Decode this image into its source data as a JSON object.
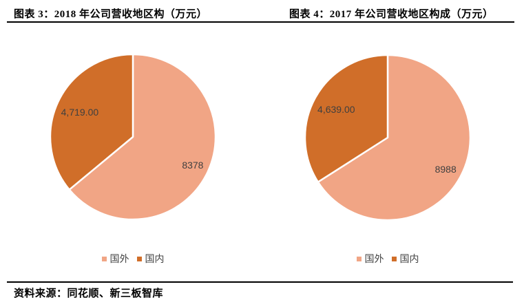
{
  "source": "资料来源：同花顺、新三板智库",
  "label_color": "#3f3f3f",
  "slice_divider_color": "#ffffff",
  "chart_data": [
    {
      "type": "pie",
      "title": "图表 3：2018 年公司营收地区构（万元）",
      "legend_position": "bottom",
      "start_angle_deg": 0,
      "direction": "clockwise",
      "segments": [
        {
          "label": "国外",
          "value": 8378,
          "display": "8378",
          "color": "#F1A585"
        },
        {
          "label": "国内",
          "value": 4719,
          "display": "4,719.00",
          "color": "#D06E29"
        }
      ]
    },
    {
      "type": "pie",
      "title": "图表 4：2017 年公司营收地区构成（万元）",
      "legend_position": "bottom",
      "start_angle_deg": 0,
      "direction": "clockwise",
      "segments": [
        {
          "label": "国外",
          "value": 8988,
          "display": "8988",
          "color": "#F1A585"
        },
        {
          "label": "国内",
          "value": 4639,
          "display": "4,639.00",
          "color": "#D06E29"
        }
      ]
    }
  ]
}
